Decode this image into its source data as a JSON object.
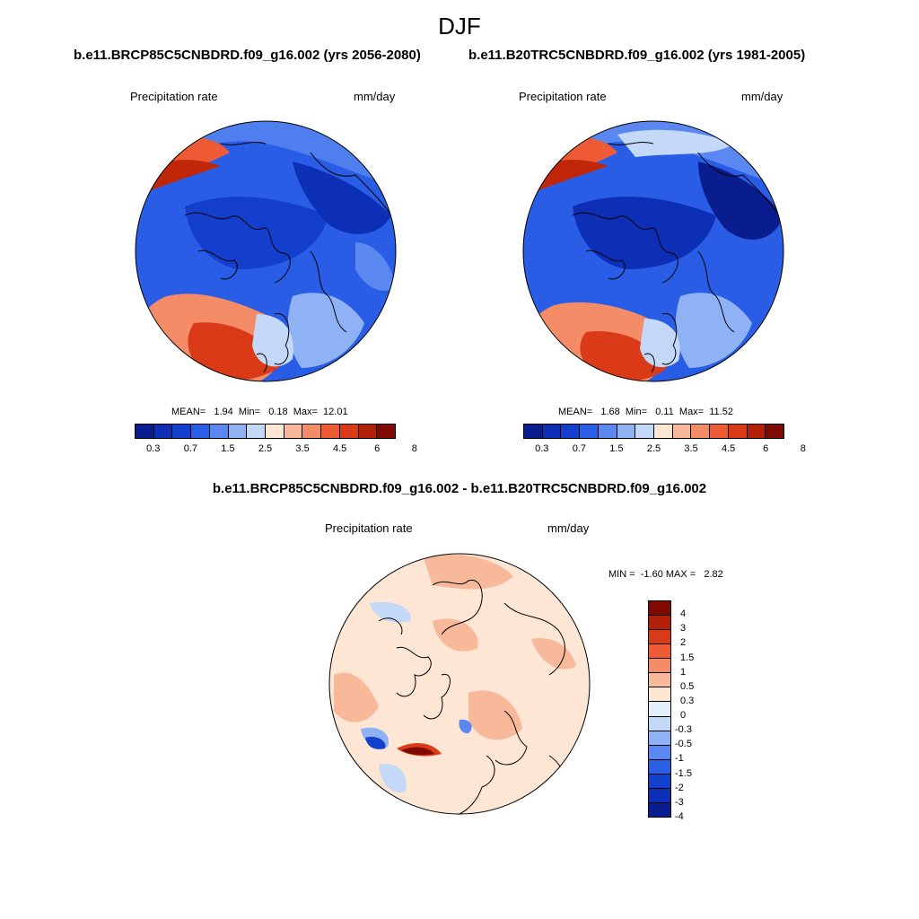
{
  "title": "DJF",
  "panels": {
    "left": {
      "case": "b.e11.BRCP85C5CNBDRD.f09_g16.002 (yrs 2056-2080)",
      "var_label": "Precipitation rate",
      "units": "mm/day",
      "stats": "MEAN=   1.94  Min=   0.18  Max=  12.01"
    },
    "right": {
      "case": "b.e11.B20TRC5CNBDRD.f09_g16.002 (yrs 1981-2005)",
      "var_label": "Precipitation rate",
      "units": "mm/day",
      "stats": "MEAN=   1.68  Min=   0.11  Max=  11.52"
    },
    "diff": {
      "case": "b.e11.BRCP85C5CNBDRD.f09_g16.002 - b.e11.B20TRC5CNBDRD.f09_g16.002",
      "var_label": "Precipitation rate",
      "units": "mm/day",
      "stats": "MIN =  -1.60 MAX =   2.82"
    }
  },
  "colorbar_abs": {
    "ticks": [
      "0.3",
      "0.7",
      "1.5",
      "2.5",
      "3.5",
      "4.5",
      "6",
      "8"
    ],
    "colors": [
      "#0a1d8f",
      "#0d2fb5",
      "#1440d0",
      "#2c5fe8",
      "#5b88f0",
      "#8fb2f5",
      "#c4d9f8",
      "#fde6d4",
      "#f7b99a",
      "#f48c68",
      "#ef5b35",
      "#db3a18",
      "#b41f08",
      "#7f0a02"
    ]
  },
  "colorbar_diff": {
    "ticks": [
      "4",
      "3",
      "2",
      "1.5",
      "1",
      "0.5",
      "0.3",
      "0",
      "-0.3",
      "-0.5",
      "-1",
      "-1.5",
      "-2",
      "-3",
      "-4"
    ],
    "colors": [
      "#7f0a02",
      "#b41f08",
      "#db3a18",
      "#ef5b35",
      "#f48c68",
      "#f7b99a",
      "#fde6d4",
      "#e5eefb",
      "#c4d9f8",
      "#8fb2f5",
      "#5b88f0",
      "#2c5fe8",
      "#1440d0",
      "#0d2fb5",
      "#0a1d8f"
    ]
  }
}
